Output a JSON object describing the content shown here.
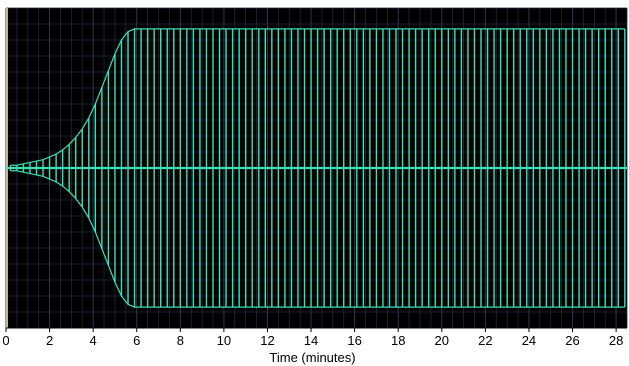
{
  "chart_data": {
    "type": "line",
    "title": "",
    "xlabel": "Time (minutes)",
    "ylabel": "",
    "xlim": [
      0,
      28.5
    ],
    "ylim": [
      -1.15,
      1.15
    ],
    "x_ticks": [
      "0",
      "2",
      "4",
      "6",
      "8",
      "10",
      "12",
      "14",
      "16",
      "18",
      "20",
      "22",
      "24",
      "26",
      "28"
    ],
    "grid": true,
    "legend": "none",
    "colors": {
      "background": "#000000",
      "grid": "#1f2a44",
      "trace": "#3fe0b4",
      "left_edge": "#c8b98a"
    },
    "series": [
      {
        "x": [
          0.2,
          0.5,
          0.8,
          1.1,
          1.4,
          1.7,
          2.0,
          2.3,
          2.6,
          2.9,
          3.2,
          3.5,
          3.8,
          4.1,
          4.4,
          4.7,
          5.0,
          5.3,
          5.6,
          5.9,
          6.2,
          6.5,
          6.8,
          7.1,
          7.4,
          7.7,
          8.0,
          8.3,
          8.6,
          8.9,
          9.2,
          9.5,
          9.8,
          10.1,
          10.4,
          10.7,
          11.0,
          11.3,
          11.6,
          11.9,
          12.2,
          12.5,
          12.8,
          13.1,
          13.4,
          13.7,
          14.0,
          14.3,
          14.6,
          14.9,
          15.2,
          15.5,
          15.8,
          16.1,
          16.4,
          16.7,
          17.0,
          17.3,
          17.6,
          17.9,
          18.2,
          18.5,
          18.8,
          19.1,
          19.4,
          19.7,
          20.0,
          20.3,
          20.6,
          20.9,
          21.2,
          21.5,
          21.8,
          22.1,
          22.4,
          22.7,
          23.0,
          23.3,
          23.6,
          23.9,
          24.2,
          24.5,
          24.8,
          25.1,
          25.4,
          25.7,
          26.0,
          26.3,
          26.6,
          26.9,
          27.2,
          27.5,
          27.8,
          28.1,
          28.4
        ],
        "amplitude": [
          0.02,
          0.02,
          0.03,
          0.04,
          0.05,
          0.06,
          0.08,
          0.1,
          0.13,
          0.17,
          0.22,
          0.28,
          0.36,
          0.46,
          0.58,
          0.7,
          0.82,
          0.92,
          0.98,
          1,
          1,
          1,
          1,
          1,
          1,
          1,
          1,
          1,
          1,
          1,
          1,
          1,
          1,
          1,
          1,
          1,
          1,
          1,
          1,
          1,
          1,
          1,
          1,
          1,
          1,
          1,
          1,
          1,
          1,
          1,
          1,
          1,
          1,
          1,
          1,
          1,
          1,
          1,
          1,
          1,
          1,
          1,
          1,
          1,
          1,
          1,
          1,
          1,
          1,
          1,
          1,
          1,
          1,
          1,
          1,
          1,
          1,
          1,
          1,
          1,
          1,
          1,
          1,
          1,
          1,
          1,
          1,
          1,
          1,
          1,
          1,
          1,
          1,
          1,
          1
        ]
      }
    ]
  }
}
